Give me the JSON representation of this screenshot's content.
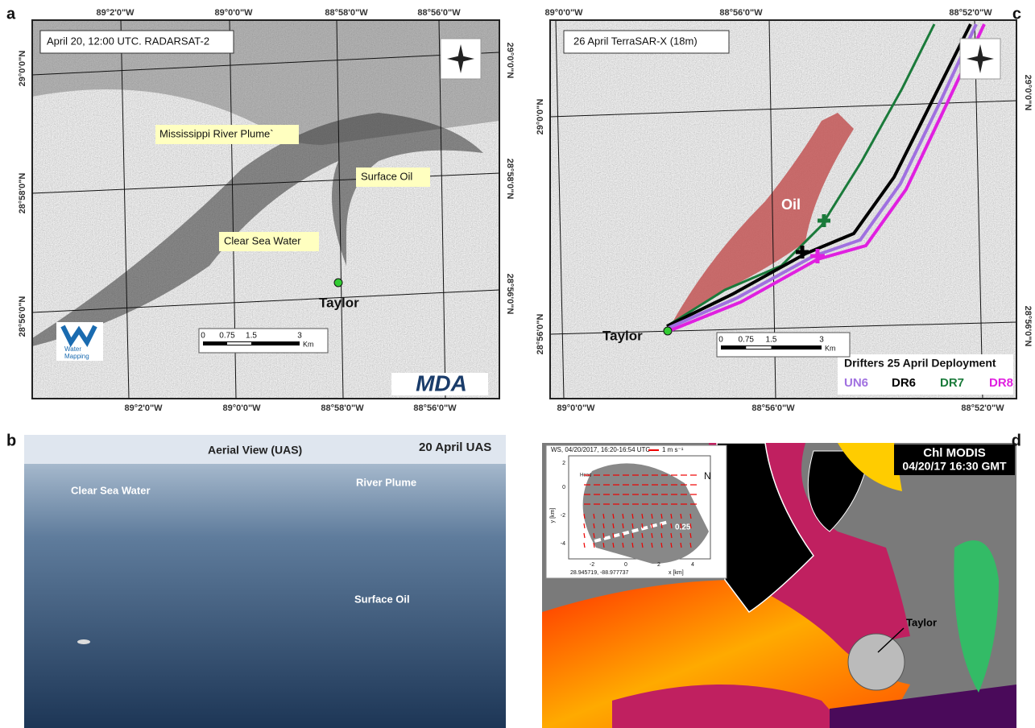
{
  "panel_a": {
    "label": "a",
    "title": "April 20, 12:00 UTC. RADARSAT-2",
    "top_ticks": [
      "89°2'0\"W",
      "89°0'0\"W",
      "88°58'0\"W",
      "88°56'0\"W"
    ],
    "bottom_ticks": [
      "89°2'0\"W",
      "89°0'0\"W",
      "88°58'0\"W",
      "88°56'0\"W"
    ],
    "left_ticks": [
      "29°0'0\"N",
      "28°58'0\"N",
      "28°56'0\"N"
    ],
    "right_ticks": [
      "29°0'0\"N",
      "28°58'0\"N",
      "28°56'0\"N"
    ],
    "annotations": [
      "Mississippi River Plume`",
      "Surface Oil",
      "Clear Sea Water"
    ],
    "site": "Taylor",
    "scale": [
      "0",
      "0.75",
      "1.5",
      "3"
    ],
    "scale_unit": "Km",
    "logo_left": [
      "Water",
      "Mapping"
    ],
    "logo_right": "MDA"
  },
  "panel_b": {
    "label": "b",
    "title": "Aerial View (UAS)",
    "date": "20 April UAS",
    "annotations": [
      "River Plume",
      "Clear Sea Water",
      "Surface Oil"
    ]
  },
  "panel_c": {
    "label": "c",
    "title": "26 April TerraSAR-X (18m)",
    "top_ticks": [
      "89°0'0\"W",
      "88°56'0\"W",
      "88°52'0\"W"
    ],
    "bottom_ticks": [
      "89°0'0\"W",
      "88°56'0\"W",
      "88°52'0\"W"
    ],
    "left_ticks": [
      "29°0'0\"N",
      "28°56'0\"N"
    ],
    "right_ticks": [
      "29°0'0\"N",
      "28°56'0\"N"
    ],
    "oil": "Oil",
    "site": "Taylor",
    "scale": [
      "0",
      "0.75",
      "1.5",
      "3"
    ],
    "scale_unit": "Km",
    "legend_title": "Drifters 25 April Deployment",
    "drifters": [
      {
        "name": "UN6",
        "color": "#a070e0"
      },
      {
        "name": "DR6",
        "color": "#000000"
      },
      {
        "name": "DR7",
        "color": "#1a7a3a"
      },
      {
        "name": "DR8",
        "color": "#e020e0"
      }
    ]
  },
  "panel_d": {
    "label": "d",
    "title": "Chl MODIS",
    "timestamp": "04/20/17 16:30 GMT",
    "site": "Taylor",
    "inset": {
      "title": "WS, 04/20/2017, 16:20-16:54 UTC",
      "vector_scale": "1 m s⁻¹",
      "north": "N",
      "y_label": "y [km]",
      "x_label": "x [km]",
      "yticks": [
        "2",
        "0",
        "-2",
        "-4"
      ],
      "xticks": [
        "-2",
        "0",
        "2",
        "4"
      ],
      "front_label": "0.25",
      "head": "Head",
      "origin": "28.945719, -88.977737"
    }
  }
}
